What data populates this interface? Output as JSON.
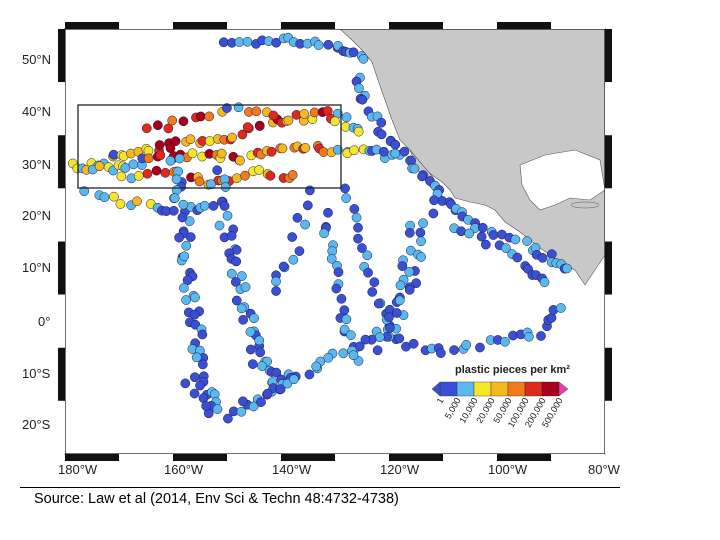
{
  "map": {
    "lat_labels": [
      "50°N",
      "40°N",
      "30°N",
      "20°N",
      "10°N",
      "0°",
      "10°S",
      "20°S"
    ],
    "lon_labels": [
      "180°W",
      "160°W",
      "140°W",
      "120°W",
      "100°W",
      "80°W"
    ],
    "extent": {
      "lon": [
        -180,
        -80
      ],
      "lat": [
        -25,
        55
      ]
    },
    "land_color": "#c8c8c8",
    "study_box": {
      "lon": [
        -180,
        -130
      ],
      "lat": [
        25,
        41
      ]
    }
  },
  "legend": {
    "title": "plastic pieces per km²",
    "placement": "bottom-right",
    "ticks": [
      "1",
      "5,000",
      "10,000",
      "20,000",
      "50,000",
      "100,000",
      "200,000",
      "500,000"
    ],
    "colors": [
      "#3a4fd4",
      "#5ab8ee",
      "#f5e62a",
      "#f5b81e",
      "#f07a1c",
      "#e0281c",
      "#a8001a",
      "#e040a8"
    ]
  },
  "source": "Source: Law et al (2014, Env Sci & Techn 48:4732-4738)"
}
